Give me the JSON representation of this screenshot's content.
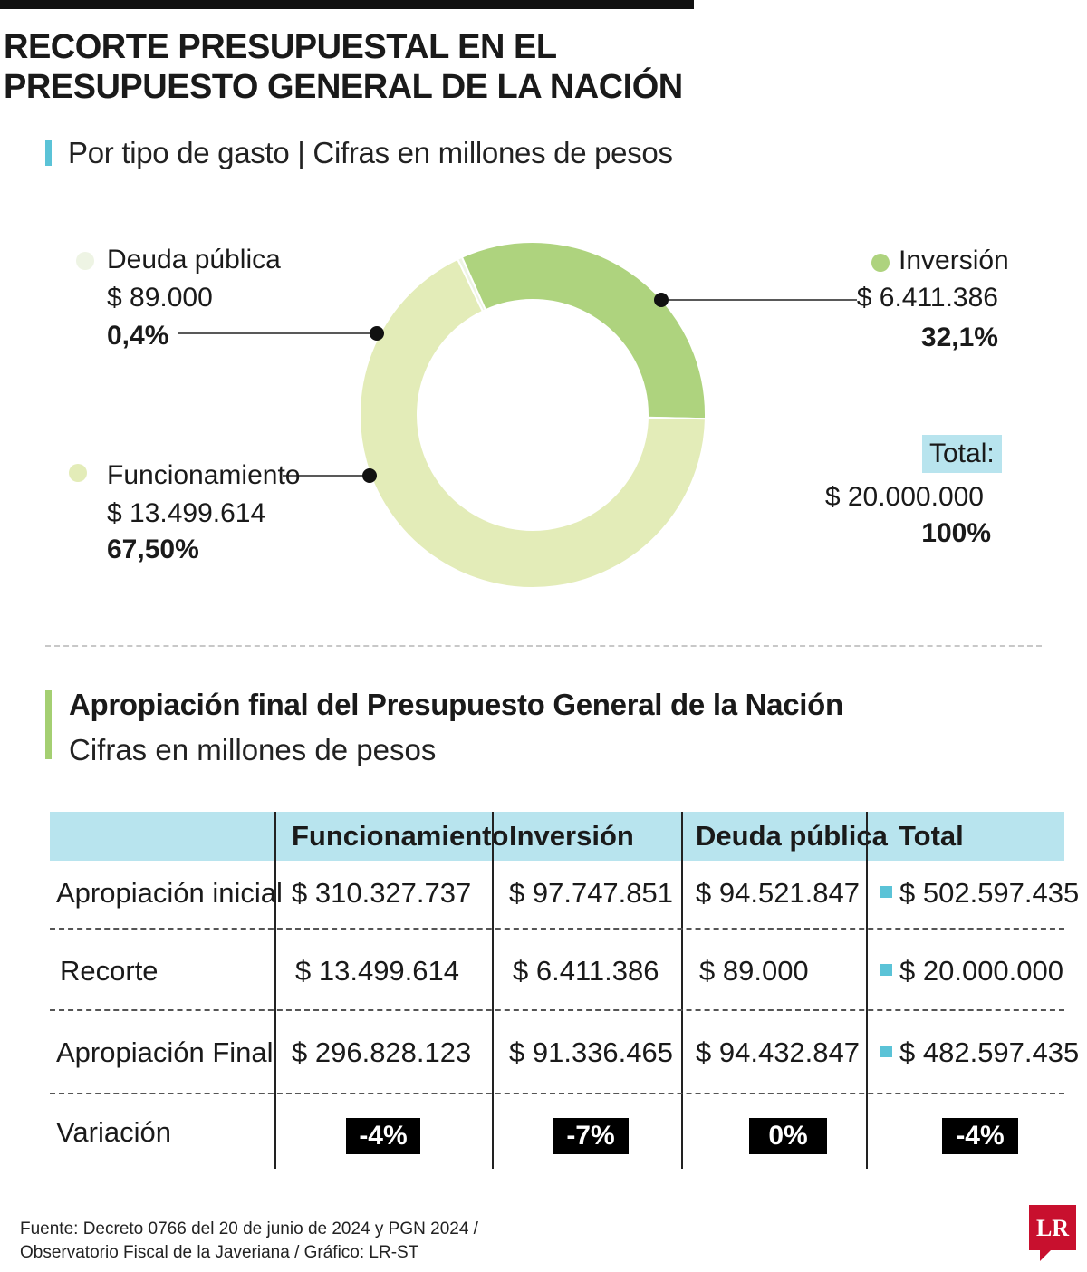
{
  "header": {
    "title_line1": "RECORTE PRESUPUESTAL EN EL",
    "title_line2": "PRESUPUESTO GENERAL DE LA NACIÓN",
    "subtitle": "Por tipo de gasto | Cifras en millones de pesos"
  },
  "chart_data": {
    "type": "pie",
    "variant": "donut",
    "title": "RECORTE PRESUPUESTAL EN EL PRESUPUESTO GENERAL DE LA NACIÓN",
    "subtitle": "Por tipo de gasto | Cifras en millones de pesos",
    "slices": [
      {
        "label": "Deuda pública",
        "value": 89000,
        "value_label": "$ 89.000",
        "pct_label": "0,4%",
        "color": "#eef4e4"
      },
      {
        "label": "Inversión",
        "value": 6411386,
        "value_label": "$ 6.411.386",
        "pct_label": "32,1%",
        "color": "#aed37e"
      },
      {
        "label": "Funcionamiento",
        "value": 13499614,
        "value_label": "$ 13.499.614",
        "pct_label": "67,50%",
        "color": "#e3ecb8"
      }
    ],
    "total": {
      "label": "Total:",
      "value": 20000000,
      "value_label": "$ 20.000.000",
      "pct_label": "100%"
    }
  },
  "table": {
    "title": "Apropiación final del Presupuesto General de la Nación",
    "subtitle": "Cifras en millones de pesos",
    "columns": [
      "Funcionamiento",
      "Inversión",
      "Deuda pública",
      "Total"
    ],
    "rows": [
      {
        "label": "Apropiación inicial",
        "values": [
          "$ 310.327.737",
          "$ 97.747.851",
          "$ 94.521.847",
          "$ 502.597.435"
        ]
      },
      {
        "label": "Recorte",
        "values": [
          "$ 13.499.614",
          "$ 6.411.386",
          "$ 89.000",
          "$ 20.000.000"
        ]
      },
      {
        "label": "Apropiación Final",
        "values": [
          "$ 296.828.123",
          "$ 91.336.465",
          "$ 94.432.847",
          "$ 482.597.435"
        ]
      }
    ],
    "variation": {
      "label": "Variación",
      "values": [
        "-4%",
        "-7%",
        "0%",
        "-4%"
      ]
    }
  },
  "colors": {
    "accent_blue": "#5bc3d7",
    "accent_green": "#a4cf72",
    "header_bg": "#b8e4ee",
    "badge_bg": "#000000"
  },
  "footer": {
    "line1": "Fuente: Decreto 0766 del 20 de junio de 2024 y PGN 2024 /",
    "line2": "Observatorio Fiscal de la Javeriana / Gráfico: LR-ST"
  },
  "logo": {
    "text": "LR",
    "color": "#c8102e"
  }
}
